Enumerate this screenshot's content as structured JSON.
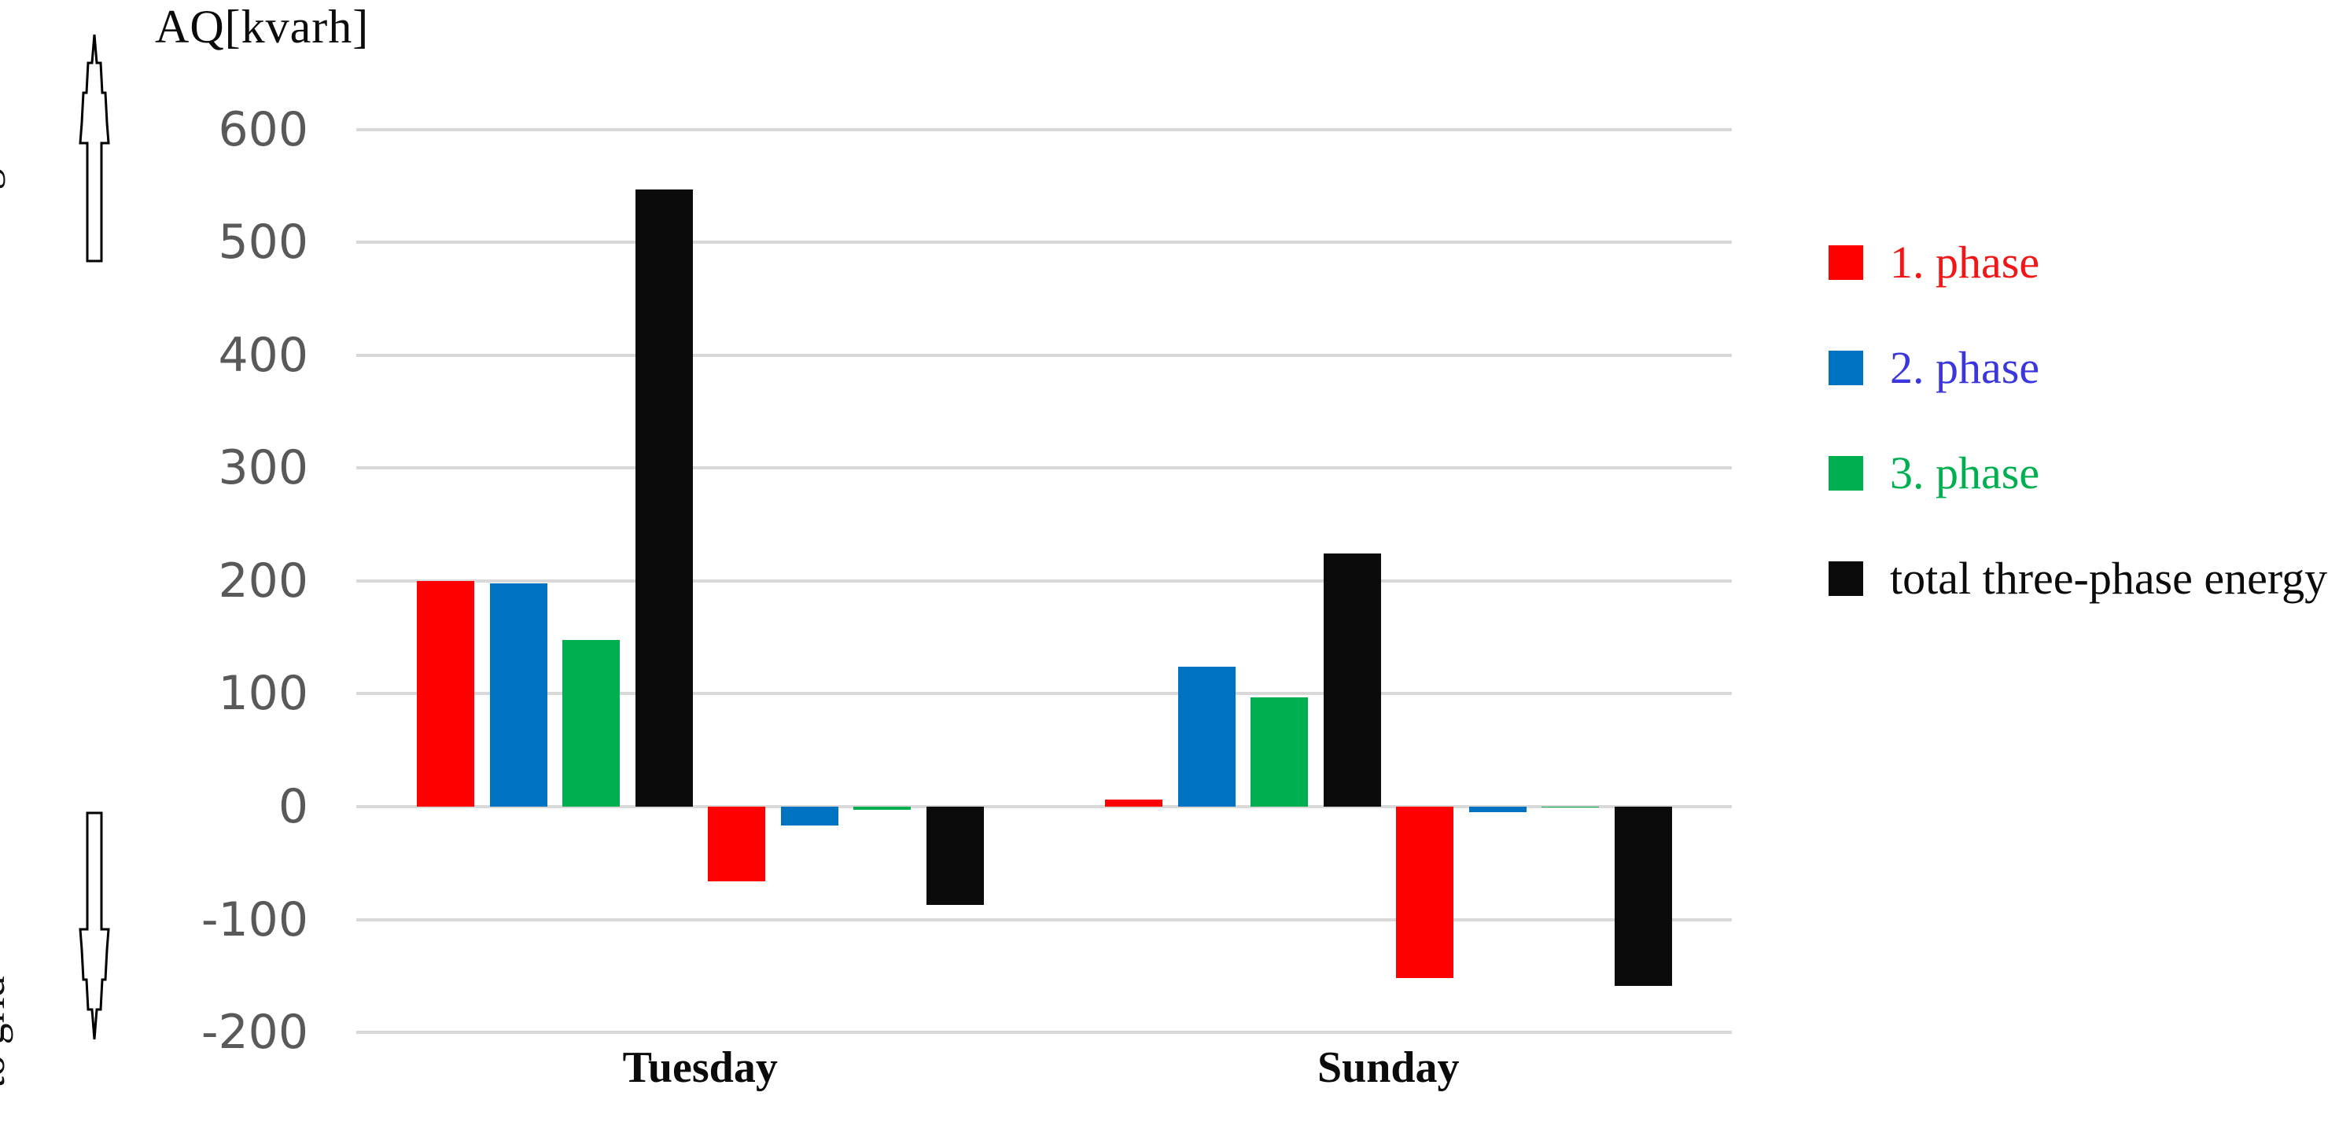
{
  "title": "AQ[kvarh]",
  "axis_annotations": {
    "top": "from grid",
    "bottom": "to grid"
  },
  "chart_data": {
    "type": "bar",
    "title": "AQ[kvarh]",
    "unit": "kvarh",
    "categories": [
      "Tuesday",
      "Sunday"
    ],
    "ylim": [
      -200,
      600
    ],
    "yticks": [
      600,
      500,
      400,
      300,
      200,
      100,
      0,
      -100,
      -200
    ],
    "grid": true,
    "legend_position": "right",
    "gridline_color": "#d9d9d9",
    "tick_label_color": "#595959",
    "series": [
      {
        "name": "1. phase",
        "color": "#ff0000",
        "label_color": "#f21616",
        "from_grid": [
          200,
          6
        ],
        "to_grid": [
          -66,
          -152
        ]
      },
      {
        "name": "2. phase",
        "color": "#0072c2",
        "label_color": "#3b37dd",
        "from_grid": [
          198,
          124
        ],
        "to_grid": [
          -17,
          -5
        ]
      },
      {
        "name": "3. phase",
        "color": "#00b050",
        "label_color": "#00b050",
        "from_grid": [
          148,
          97
        ],
        "to_grid": [
          -3,
          -1
        ]
      },
      {
        "name": "total three-phase energy",
        "color": "#0b0b0b",
        "label_color": "#0b0b0b",
        "from_grid": [
          547,
          224
        ],
        "to_grid": [
          -87,
          -159
        ]
      }
    ]
  }
}
